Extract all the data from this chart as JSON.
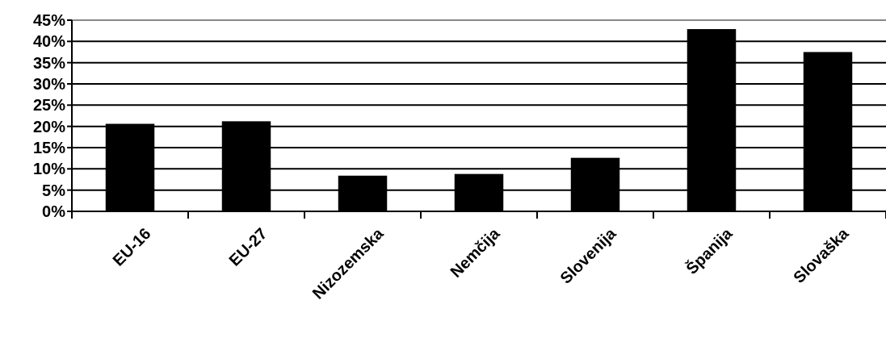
{
  "chart_data": {
    "type": "bar",
    "categories": [
      "EU-16",
      "EU-27",
      "Nizozemska",
      "Nemčija",
      "Slovenija",
      "Španija",
      "Slovaška"
    ],
    "values": [
      20.6,
      21.2,
      8.4,
      8.8,
      12.6,
      42.9,
      37.5
    ],
    "color": "#000000",
    "ylim": [
      0,
      45
    ],
    "yticks": [
      {
        "value": 0,
        "label": "0%"
      },
      {
        "value": 5,
        "label": "5%"
      },
      {
        "value": 10,
        "label": "10%"
      },
      {
        "value": 15,
        "label": "15%"
      },
      {
        "value": 20,
        "label": "20%"
      },
      {
        "value": 25,
        "label": "25%"
      },
      {
        "value": 30,
        "label": "30%"
      },
      {
        "value": 35,
        "label": "35%"
      },
      {
        "value": 40,
        "label": "40%"
      },
      {
        "value": 45,
        "label": "45%"
      }
    ],
    "grid": "y"
  }
}
